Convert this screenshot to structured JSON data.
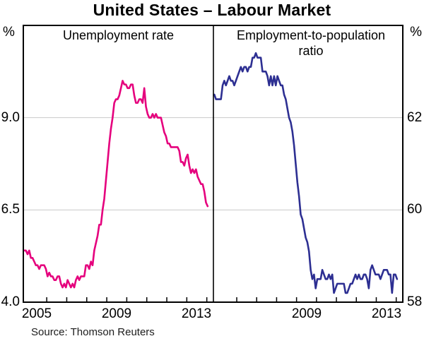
{
  "title": "United States – Labour Market",
  "source": "Source: Thomson Reuters",
  "colors": {
    "unemployment_line": "#e5007d",
    "employment_line": "#2d2f92",
    "gridline": "#c9c9c9",
    "frame": "#000000"
  },
  "chart_data": {
    "type": "line",
    "title": "United States – Labour Market",
    "frequency": "monthly",
    "start": {
      "year": 2004,
      "month": 11
    },
    "x_domain": [
      2004.83,
      2014.33
    ],
    "grid": "horizontal-only",
    "panels": [
      {
        "label": "Unemployment rate",
        "unit": "%",
        "ylim": [
          4.0,
          11.5
        ],
        "yticks": [
          {
            "label": "9.0",
            "value": 9.0
          },
          {
            "label": "6.5",
            "value": 6.5
          },
          {
            "label": "4.0",
            "value": 4.0
          }
        ],
        "gridlines": [
          6.5,
          9.0
        ],
        "xticks_years": [
          2006,
          2007,
          2008,
          2009,
          2010,
          2011,
          2012,
          2013,
          2014
        ],
        "xlabels": [
          {
            "text": "2005",
            "t": 2005.5
          },
          {
            "text": "2009",
            "t": 2009.5
          },
          {
            "text": "2013",
            "t": 2013.5
          }
        ],
        "series": {
          "name": "Unemployment rate",
          "color_key": "unemployment_line",
          "values": [
            5.4,
            5.4,
            5.3,
            5.4,
            5.2,
            5.2,
            5.1,
            5.0,
            5.0,
            4.9,
            5.0,
            5.0,
            5.0,
            4.9,
            4.7,
            4.8,
            4.7,
            4.7,
            4.6,
            4.6,
            4.7,
            4.7,
            4.5,
            4.4,
            4.5,
            4.4,
            4.6,
            4.5,
            4.4,
            4.5,
            4.4,
            4.6,
            4.7,
            4.6,
            4.7,
            4.7,
            4.7,
            5.0,
            5.0,
            4.9,
            5.1,
            5.0,
            5.4,
            5.6,
            5.8,
            6.1,
            6.1,
            6.5,
            6.8,
            7.3,
            7.8,
            8.3,
            8.7,
            9.0,
            9.4,
            9.5,
            9.5,
            9.6,
            9.8,
            10.0,
            9.9,
            9.9,
            9.8,
            9.8,
            9.9,
            9.9,
            9.6,
            9.4,
            9.4,
            9.5,
            9.5,
            9.4,
            9.8,
            9.3,
            9.1,
            9.0,
            9.0,
            9.1,
            9.0,
            9.1,
            9.0,
            9.0,
            9.0,
            8.8,
            8.6,
            8.5,
            8.3,
            8.3,
            8.2,
            8.2,
            8.2,
            8.2,
            8.2,
            8.1,
            7.8,
            7.8,
            7.7,
            7.9,
            8.0,
            7.7,
            7.5,
            7.6,
            7.5,
            7.6,
            7.4,
            7.3,
            7.2,
            7.2,
            7.0,
            6.7,
            6.6
          ]
        }
      },
      {
        "label": "Employment-to-population ratio",
        "unit": "%",
        "ylim": [
          58,
          64
        ],
        "yticks": [
          {
            "label": "62",
            "value": 62
          },
          {
            "label": "60",
            "value": 60
          },
          {
            "label": "58",
            "value": 58
          }
        ],
        "gridlines": [
          60,
          62
        ],
        "xticks_years": [
          2006,
          2007,
          2008,
          2009,
          2010,
          2011,
          2012,
          2013,
          2014
        ],
        "xlabels": [
          {
            "text": "2009",
            "t": 2009.5
          },
          {
            "text": "2013",
            "t": 2013.5
          }
        ],
        "series": {
          "name": "Employment-to-population ratio",
          "color_key": "employment_line",
          "values": [
            62.5,
            62.4,
            62.4,
            62.4,
            62.4,
            62.7,
            62.8,
            62.7,
            62.8,
            62.9,
            62.8,
            62.8,
            62.7,
            62.8,
            62.9,
            63.0,
            63.1,
            63.0,
            63.1,
            63.1,
            63.0,
            63.1,
            63.1,
            63.3,
            63.3,
            63.4,
            63.3,
            63.3,
            63.3,
            63.0,
            63.0,
            63.0,
            62.9,
            62.7,
            62.9,
            62.7,
            62.9,
            62.7,
            62.9,
            62.8,
            62.7,
            62.7,
            62.5,
            62.4,
            62.2,
            62.0,
            61.9,
            61.7,
            61.4,
            61.0,
            60.6,
            60.3,
            59.9,
            59.8,
            59.6,
            59.4,
            59.3,
            59.1,
            58.7,
            58.5,
            58.6,
            58.3,
            58.5,
            58.5,
            58.5,
            58.7,
            58.6,
            58.5,
            58.5,
            58.6,
            58.5,
            58.6,
            58.2,
            58.3,
            58.4,
            58.4,
            58.4,
            58.4,
            58.4,
            58.2,
            58.2,
            58.3,
            58.4,
            58.4,
            58.5,
            58.6,
            58.5,
            58.6,
            58.5,
            58.5,
            58.6,
            58.6,
            58.5,
            58.3,
            58.7,
            58.8,
            58.7,
            58.6,
            58.6,
            58.6,
            58.5,
            58.6,
            58.7,
            58.7,
            58.7,
            58.6,
            58.6,
            58.2,
            58.6,
            58.6,
            58.5
          ]
        }
      }
    ]
  }
}
